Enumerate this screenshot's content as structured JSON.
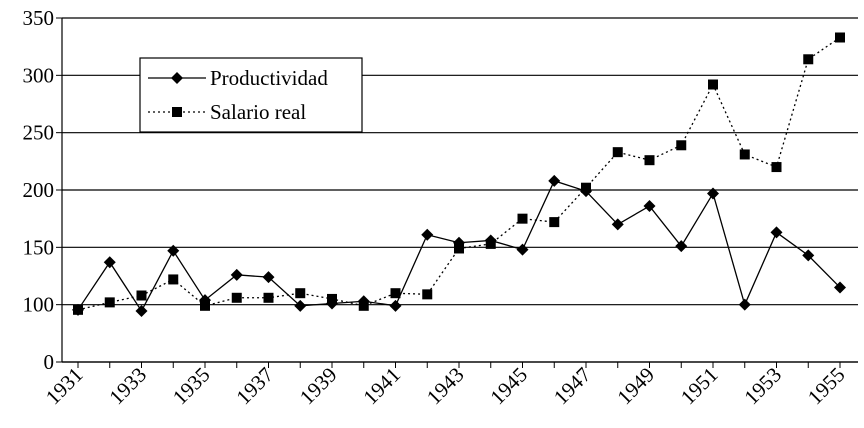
{
  "chart_data": {
    "type": "line",
    "categories": [
      "1931",
      null,
      "1933",
      null,
      "1935",
      null,
      "1937",
      null,
      "1939",
      null,
      "1941",
      null,
      "1943",
      null,
      "1945",
      null,
      "1947",
      null,
      "1949",
      null,
      "1951",
      null,
      "1953",
      null,
      "1955"
    ],
    "series": [
      {
        "name": "Productividad",
        "color": "#000000",
        "marker": "diamond",
        "dash": "solid",
        "values": [
          91,
          137,
          89,
          147,
          104,
          126,
          124,
          98,
          101,
          103,
          98,
          161,
          154,
          156,
          148,
          208,
          199,
          170,
          186,
          151,
          197,
          100,
          163,
          143,
          115
        ]
      },
      {
        "name": "Salario real",
        "color": "#000000",
        "marker": "square",
        "dash": "dotted",
        "values": [
          91,
          102,
          108,
          122,
          98,
          106,
          106,
          110,
          105,
          98,
          110,
          109,
          149,
          153,
          175,
          172,
          202,
          233,
          226,
          239,
          292,
          231,
          220,
          314,
          333
        ]
      }
    ],
    "ylim": [
      0,
      350
    ],
    "yticks": [
      0,
      100,
      150,
      200,
      250,
      300,
      350
    ],
    "axis_break": [
      0,
      100
    ],
    "grid": true,
    "legend": "upper left"
  }
}
